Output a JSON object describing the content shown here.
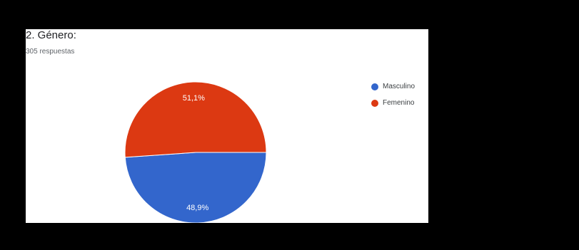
{
  "chart_data": {
    "type": "pie",
    "title": "2. Género:",
    "subtitle": "305 respuestas",
    "slices": [
      {
        "label": "Masculino",
        "value": 48.9,
        "display": "48,9%",
        "color": "#3366cc"
      },
      {
        "label": "Femenino",
        "value": 51.1,
        "display": "51,1%",
        "color": "#dc3912"
      }
    ],
    "legend_position": "right"
  }
}
